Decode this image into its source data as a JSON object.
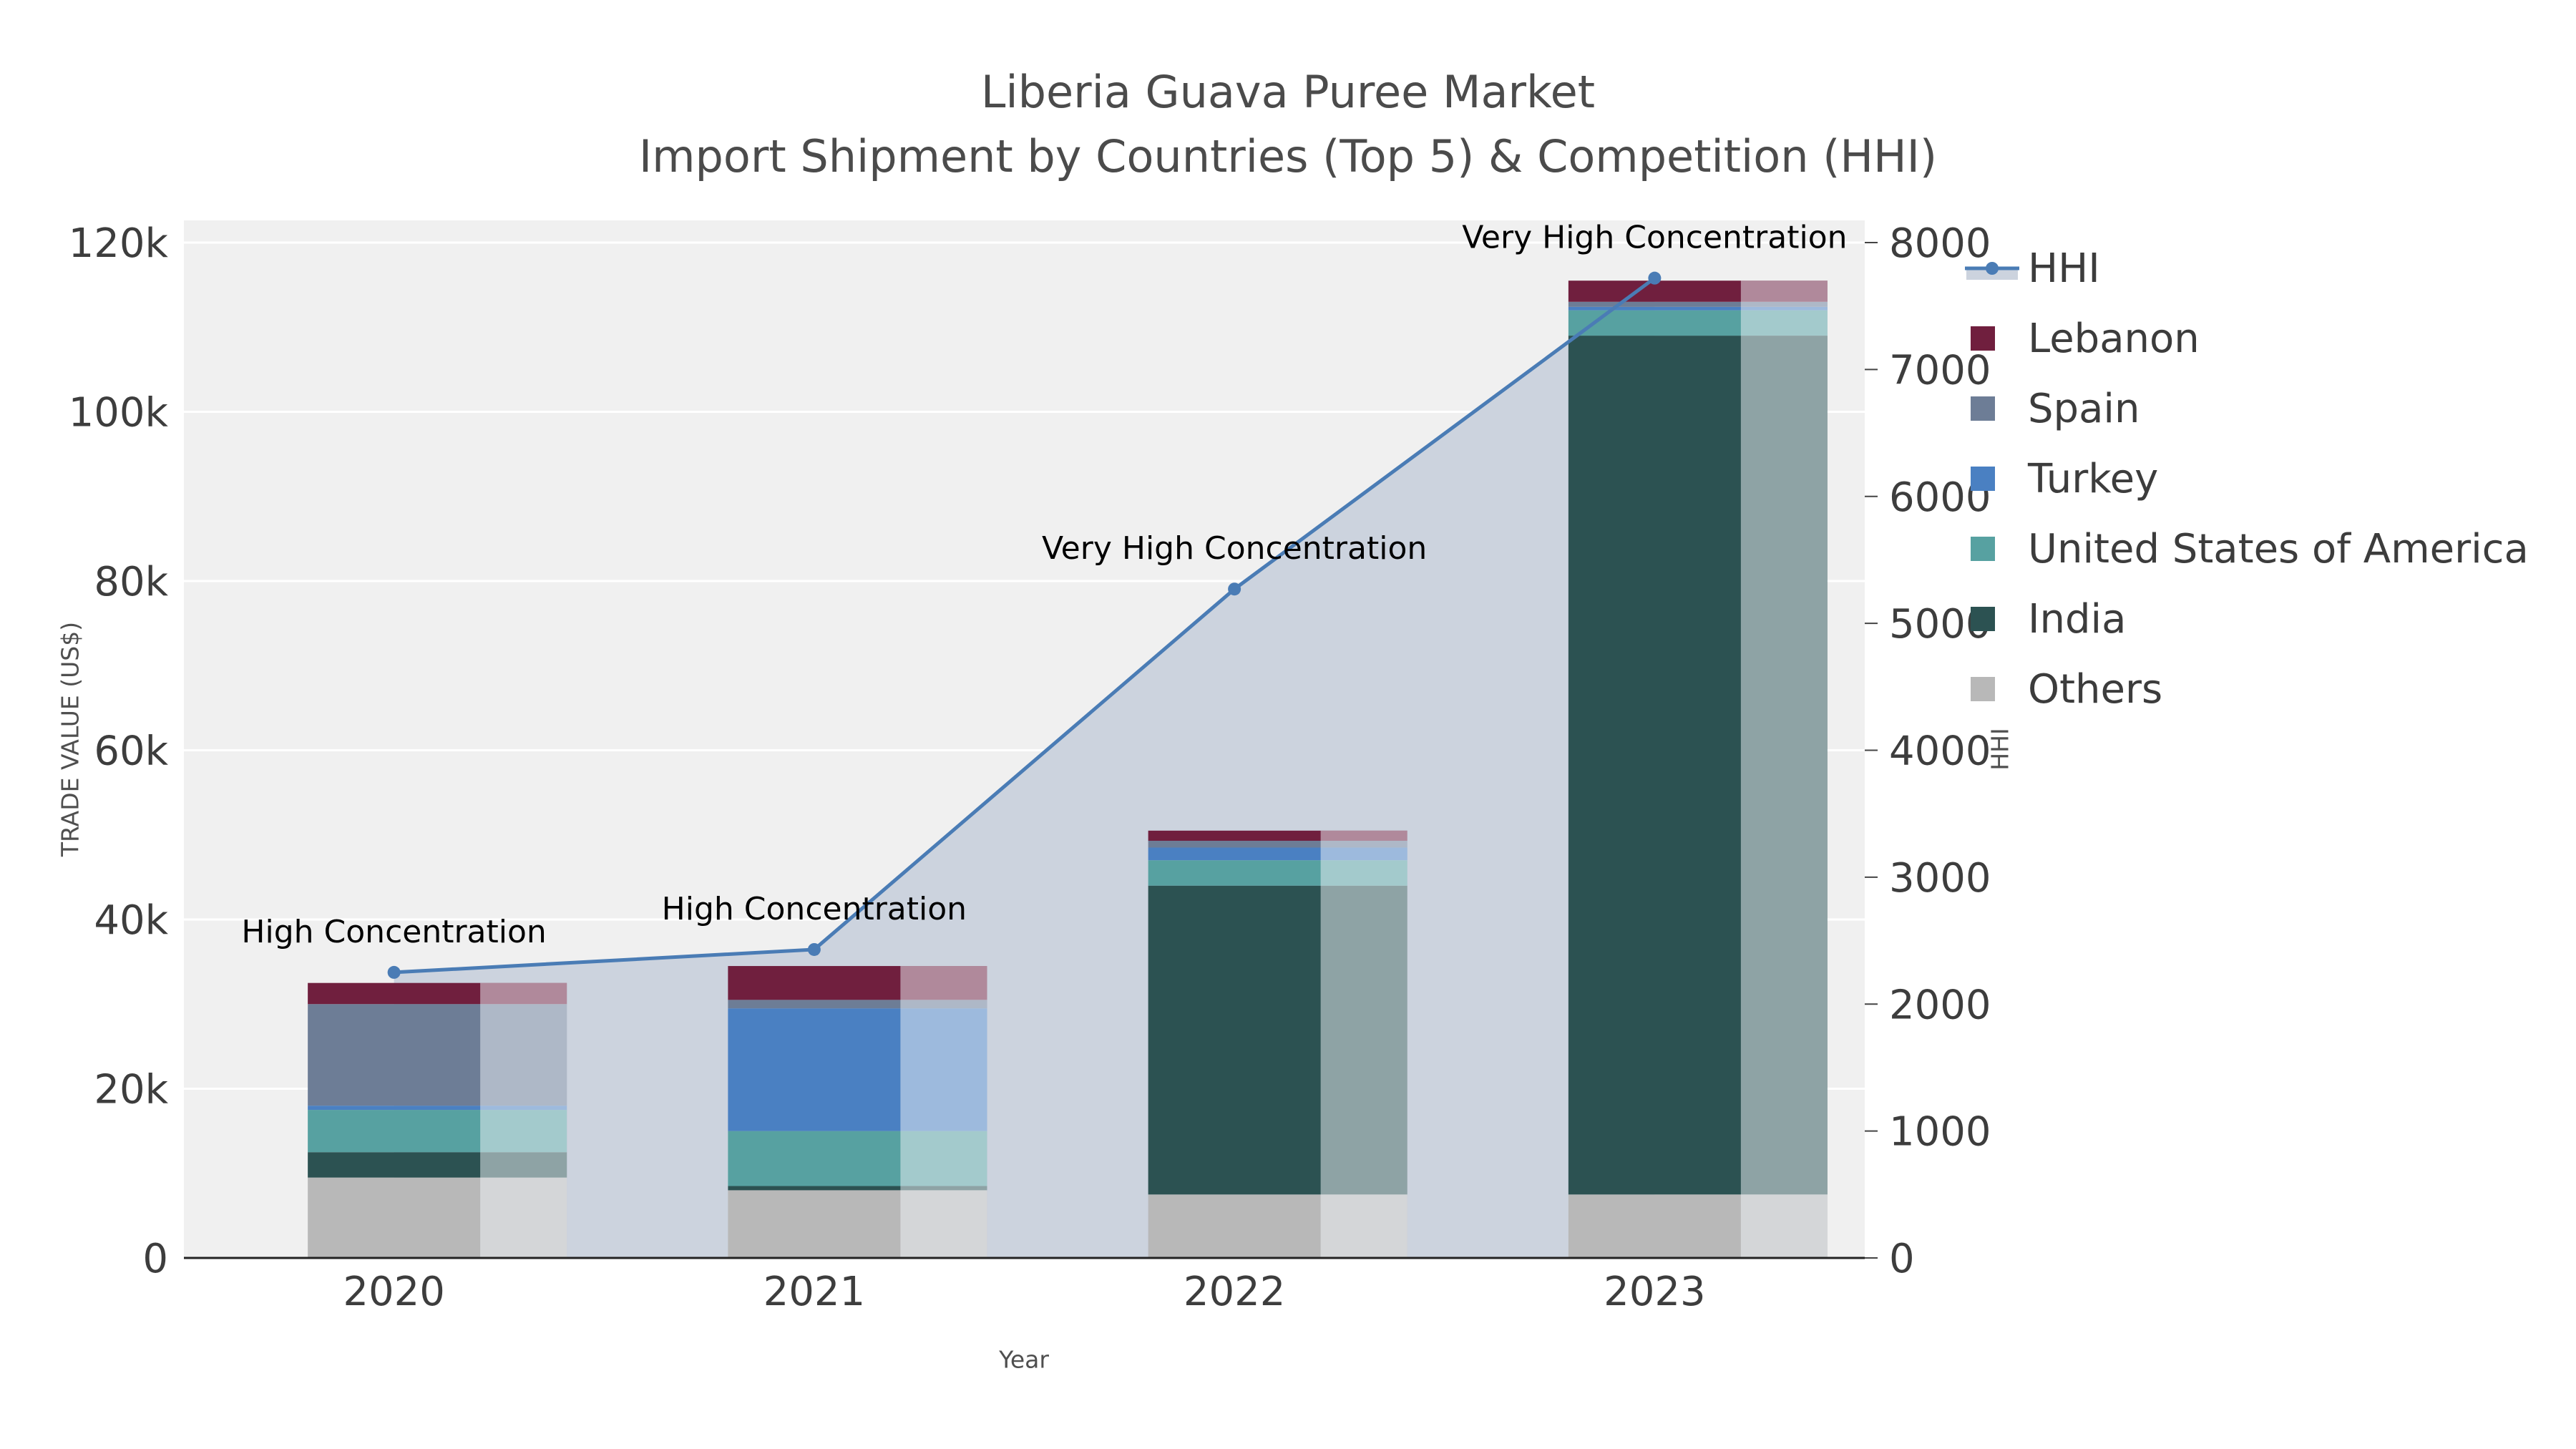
{
  "title": "Liberia Guava Puree Market",
  "subtitle": "Import Shipment by Countries (Top 5) & Competition (HHI)",
  "axes": {
    "x_title": "Year",
    "y_title": "TRADE VALUE (US$)",
    "y2_title": "HHI",
    "y_ticks": [
      "0",
      "20k",
      "40k",
      "60k",
      "80k",
      "100k",
      "120k"
    ],
    "y_tick_values": [
      0,
      20000,
      40000,
      60000,
      80000,
      100000,
      120000
    ],
    "y2_ticks": [
      "0",
      "1000",
      "2000",
      "3000",
      "4000",
      "5000",
      "6000",
      "7000",
      "8000"
    ],
    "y2_tick_values": [
      0,
      1000,
      2000,
      3000,
      4000,
      5000,
      6000,
      7000,
      8000
    ]
  },
  "chart_data": {
    "type": "bar+line",
    "title": "Liberia Guava Puree Market Import Shipment by Countries (Top 5) & Competition (HHI)",
    "categories": [
      "2020",
      "2021",
      "2022",
      "2023"
    ],
    "stack_order_bottom_to_top": [
      "Others",
      "India",
      "United States of America",
      "Turkey",
      "Spain",
      "Lebanon"
    ],
    "bar_series": [
      {
        "name": "Lebanon",
        "color": "#701f3e",
        "values": [
          2500,
          4000,
          1200,
          2500
        ]
      },
      {
        "name": "Spain",
        "color": "#6d7d96",
        "values": [
          12000,
          1000,
          800,
          600
        ]
      },
      {
        "name": "Turkey",
        "color": "#4a80c2",
        "values": [
          500,
          14500,
          1500,
          400
        ]
      },
      {
        "name": "United States of America",
        "color": "#57a1a1",
        "values": [
          5000,
          6500,
          3000,
          3000
        ]
      },
      {
        "name": "India",
        "color": "#2c5252",
        "values": [
          3000,
          500,
          36500,
          101500
        ]
      },
      {
        "name": "Others",
        "color": "#b8b8b8",
        "values": [
          9500,
          8000,
          7500,
          7500
        ]
      }
    ],
    "line_series": {
      "name": "HHI",
      "color": "#4a7cb5",
      "fill_color": "#ccd3de",
      "values": [
        2250,
        2430,
        5270,
        7720
      ]
    },
    "annotations": [
      "High Concentration",
      "High Concentration",
      "Very High Concentration",
      "Very High Concentration"
    ],
    "y_axis": {
      "label": "TRADE VALUE (US$)",
      "range": [
        0,
        120000
      ]
    },
    "y2_axis": {
      "label": "HHI",
      "range": [
        0,
        8000
      ]
    },
    "grid": true,
    "legend_position": "right-top"
  },
  "legend": {
    "items": [
      {
        "label": "HHI",
        "glyph": "line-marker",
        "color": "#4a7cb5"
      },
      {
        "label": "Lebanon",
        "glyph": "square",
        "color": "#701f3e"
      },
      {
        "label": "Spain",
        "glyph": "square",
        "color": "#6d7d96"
      },
      {
        "label": "Turkey",
        "glyph": "square",
        "color": "#4a80c2"
      },
      {
        "label": "United States of America",
        "glyph": "square",
        "color": "#57a1a1"
      },
      {
        "label": "India",
        "glyph": "square",
        "color": "#2c5252"
      },
      {
        "label": "Others",
        "glyph": "square",
        "color": "#b8b8b8"
      }
    ]
  }
}
